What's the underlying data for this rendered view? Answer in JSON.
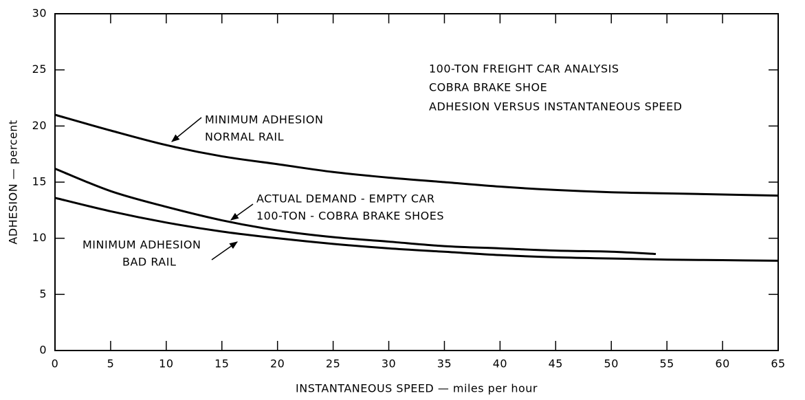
{
  "chart_data": {
    "type": "line",
    "title_lines": [
      "100-TON FREIGHT CAR ANALYSIS",
      "COBRA BRAKE SHOE",
      "ADHESION VERSUS INSTANTANEOUS SPEED"
    ],
    "x_label": "INSTANTANEOUS SPEED — miles per hour",
    "y_label": "ADHESION — percent",
    "xlim": [
      0,
      65
    ],
    "xticks": [
      0,
      5,
      10,
      15,
      20,
      25,
      30,
      35,
      40,
      45,
      50,
      55,
      60,
      65
    ],
    "ylim": [
      0,
      30
    ],
    "yticks": [
      0,
      5,
      10,
      15,
      20,
      25,
      30
    ],
    "series": [
      {
        "name": "MINIMUM ADHESION NORMAL RAIL",
        "color": "#000000",
        "label_lines": [
          "MINIMUM ADHESION",
          "NORMAL RAIL"
        ],
        "x": [
          0,
          5,
          10,
          15,
          20,
          25,
          30,
          35,
          40,
          45,
          50,
          55,
          60,
          65
        ],
        "values": [
          21,
          19.6,
          18.3,
          17.3,
          16.6,
          15.9,
          15.4,
          15,
          14.6,
          14.3,
          14.1,
          14.0,
          13.9,
          13.8
        ]
      },
      {
        "name": "ACTUAL DEMAND - EMPTY CAR 100-TON - COBRA BRAKE SHOES",
        "color": "#000000",
        "label_lines": [
          "ACTUAL DEMAND - EMPTY CAR",
          "100-TON - COBRA BRAKE SHOES"
        ],
        "x": [
          0,
          5,
          10,
          15,
          20,
          25,
          30,
          35,
          40,
          45,
          50,
          54
        ],
        "values": [
          16.2,
          14.2,
          12.8,
          11.6,
          10.7,
          10.1,
          9.7,
          9.3,
          9.1,
          8.9,
          8.8,
          8.6
        ]
      },
      {
        "name": "MINIMUM ADHESION BAD RAIL",
        "color": "#000000",
        "label_lines": [
          "MINIMUM ADHESION",
          "BAD RAIL"
        ],
        "x": [
          0,
          5,
          10,
          15,
          20,
          25,
          30,
          35,
          40,
          45,
          50,
          55,
          60,
          65
        ],
        "values": [
          13.6,
          12.4,
          11.4,
          10.6,
          10.0,
          9.5,
          9.1,
          8.8,
          8.5,
          8.3,
          8.2,
          8.1,
          8.05,
          8.0
        ]
      }
    ]
  }
}
